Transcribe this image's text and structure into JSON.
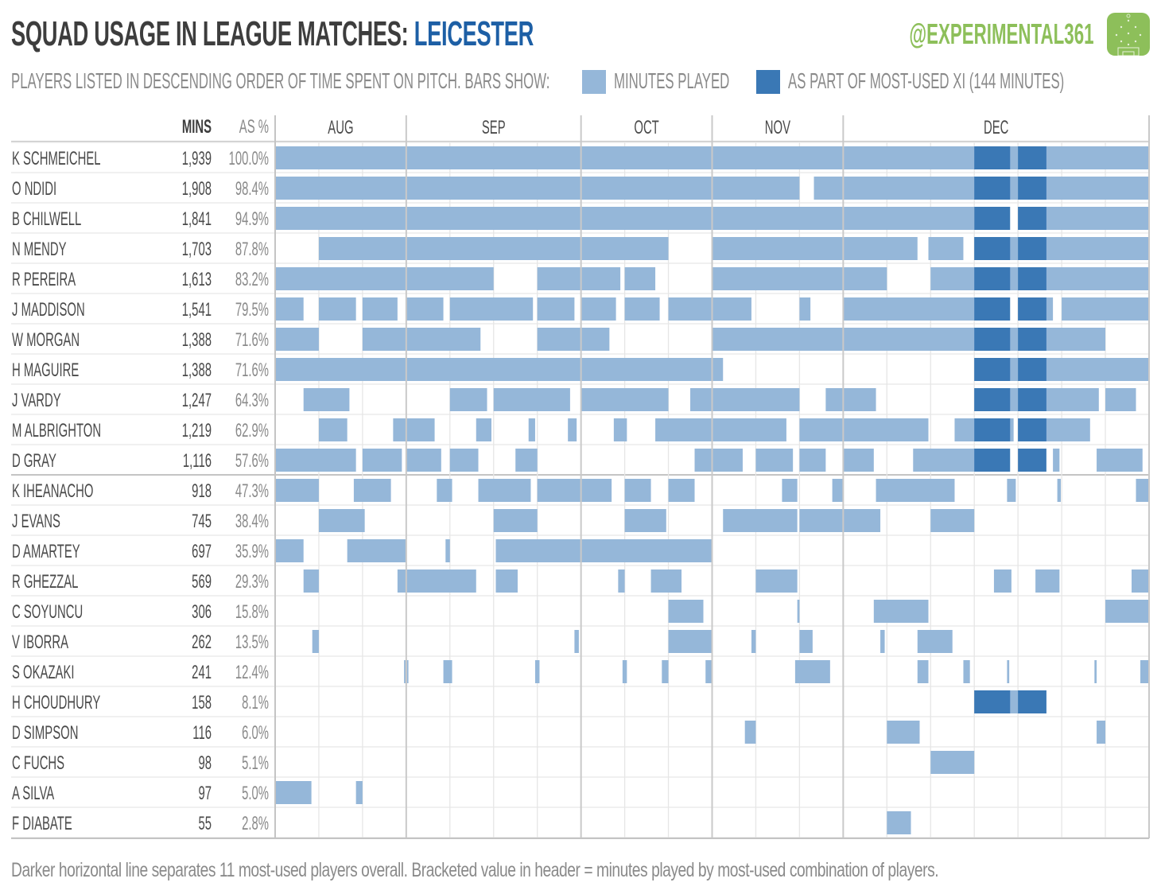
{
  "header": {
    "title_prefix": "SQUAD USAGE IN LEAGUE MATCHES: ",
    "team": "LEICESTER",
    "handle": "@EXPERIMENTAL361",
    "logo_icon": "football-pitch-icon",
    "subtitle": "PLAYERS LISTED IN DESCENDING ORDER OF TIME SPENT ON PITCH.  BARS SHOW:",
    "legend": [
      {
        "label": "MINUTES PLAYED",
        "color": "#95b7d9"
      },
      {
        "label": "AS PART OF MOST-USED XI  (144 MINUTES)",
        "color": "#3a78b5"
      }
    ]
  },
  "footnote": "Darker horizontal line separates 11 most-used players overall.  Bracketed value in header = minutes played by most-used combination of players.",
  "colors": {
    "title": "#3d3d3d",
    "team": "#1d5fa5",
    "brand": "#8dbf5a",
    "minutes": "#95b7d9",
    "most_used_xi": "#3a78b5",
    "grid": "#e3e3e3",
    "month_line": "#c4c4c4"
  },
  "chart_data": {
    "type": "gantt",
    "title": "SQUAD USAGE IN LEAGUE MATCHES: LEICESTER",
    "column_headers": {
      "mins": "MINS",
      "pct": "AS %"
    },
    "total_matches": 20,
    "minutes_per_match": 97,
    "months": [
      {
        "label": "AUG",
        "matches": 3
      },
      {
        "label": "SEP",
        "matches": 4
      },
      {
        "label": "OCT",
        "matches": 3
      },
      {
        "label": "NOV",
        "matches": 3
      },
      {
        "label": "DEC",
        "matches": 7
      }
    ],
    "most_used_xi_minutes": 144,
    "most_used_xi_spans": [
      [
        16.0,
        16.82
      ],
      [
        17.0,
        17.65
      ]
    ],
    "separator_after_rank": 11,
    "x_unit": "match index (0-20), fractional = minute within match",
    "players": [
      {
        "name": "K SCHMEICHEL",
        "mins": "1,939",
        "pct": "100.0%",
        "xi": true,
        "spans": [
          [
            0,
            20
          ]
        ]
      },
      {
        "name": "O NDIDI",
        "mins": "1,908",
        "pct": "98.4%",
        "xi": true,
        "spans": [
          [
            0,
            12.0
          ],
          [
            12.33,
            20
          ]
        ]
      },
      {
        "name": "B CHILWELL",
        "mins": "1,841",
        "pct": "94.9%",
        "xi": true,
        "spans": [
          [
            0,
            16.0
          ],
          [
            17.0,
            20
          ]
        ]
      },
      {
        "name": "N MENDY",
        "mins": "1,703",
        "pct": "87.8%",
        "xi": true,
        "spans": [
          [
            1,
            9.0
          ],
          [
            10,
            14.7
          ],
          [
            14.95,
            15.75
          ],
          [
            16,
            20
          ]
        ]
      },
      {
        "name": "R PEREIRA",
        "mins": "1,613",
        "pct": "83.2%",
        "xi": true,
        "spans": [
          [
            0,
            5.0
          ],
          [
            6,
            7.9
          ],
          [
            8.0,
            8.7
          ],
          [
            10,
            14.0
          ],
          [
            15,
            20
          ]
        ]
      },
      {
        "name": "J MADDISON",
        "mins": "1,541",
        "pct": "79.5%",
        "xi": true,
        "spans": [
          [
            0,
            0.65
          ],
          [
            1,
            1.85
          ],
          [
            2,
            2.8
          ],
          [
            3,
            3.85
          ],
          [
            4,
            5.9
          ],
          [
            6,
            6.85
          ],
          [
            7,
            7.8
          ],
          [
            8,
            8.8
          ],
          [
            9,
            10.9
          ],
          [
            12.0,
            12.25
          ],
          [
            13,
            16.45
          ],
          [
            17,
            17.8
          ],
          [
            18,
            20
          ]
        ]
      },
      {
        "name": "W MORGAN",
        "mins": "1,388",
        "pct": "71.6%",
        "xi": true,
        "spans": [
          [
            0,
            1.0
          ],
          [
            2,
            4.7
          ],
          [
            6,
            7.65
          ],
          [
            10,
            19.0
          ]
        ]
      },
      {
        "name": "H MAGUIRE",
        "mins": "1,388",
        "pct": "71.6%",
        "xi": true,
        "spans": [
          [
            0,
            10.25
          ],
          [
            16,
            20
          ]
        ]
      },
      {
        "name": "J VARDY",
        "mins": "1,247",
        "pct": "64.3%",
        "xi": true,
        "spans": [
          [
            0.65,
            1.7
          ],
          [
            4,
            4.85
          ],
          [
            5,
            6.75
          ],
          [
            7,
            9.0
          ],
          [
            9.5,
            12.0
          ],
          [
            12.6,
            13.75
          ],
          [
            16,
            18.85
          ],
          [
            19,
            19.7
          ]
        ]
      },
      {
        "name": "M ALBRIGHTON",
        "mins": "1,219",
        "pct": "62.9%",
        "xi": true,
        "spans": [
          [
            1,
            1.65
          ],
          [
            2.7,
            3.65
          ],
          [
            4.6,
            4.95
          ],
          [
            5.8,
            5.95
          ],
          [
            6.7,
            6.9
          ],
          [
            7.75,
            8.05
          ],
          [
            8.7,
            11.7
          ],
          [
            12.0,
            14.95
          ],
          [
            15.55,
            16.9
          ],
          [
            17,
            18.65
          ]
        ]
      },
      {
        "name": "D GRAY",
        "mins": "1,116",
        "pct": "57.6%",
        "xi": true,
        "spans": [
          [
            0,
            1.85
          ],
          [
            2,
            2.9
          ],
          [
            3,
            3.8
          ],
          [
            4,
            4.65
          ],
          [
            5.5,
            6.0
          ],
          [
            9.6,
            10.7
          ],
          [
            11,
            11.85
          ],
          [
            12,
            12.6
          ],
          [
            13,
            13.7
          ],
          [
            14.6,
            16.75
          ],
          [
            17.8,
            17.95
          ],
          [
            18.8,
            19.85
          ]
        ]
      },
      {
        "name": "K IHEANACHO",
        "mins": "918",
        "pct": "47.3%",
        "xi": false,
        "spans": [
          [
            0,
            1.0
          ],
          [
            1.8,
            2.65
          ],
          [
            3.7,
            4.05
          ],
          [
            4.65,
            5.85
          ],
          [
            6,
            7.7
          ],
          [
            8,
            8.6
          ],
          [
            9,
            9.6
          ],
          [
            11.6,
            11.95
          ],
          [
            12.75,
            13.0
          ],
          [
            13.75,
            15.55
          ],
          [
            16.75,
            16.95
          ],
          [
            17.9,
            17.98
          ],
          [
            19.7,
            20
          ]
        ]
      },
      {
        "name": "J EVANS",
        "mins": "745",
        "pct": "38.4%",
        "xi": false,
        "spans": [
          [
            1,
            2.05
          ],
          [
            5,
            6.0
          ],
          [
            8,
            8.95
          ],
          [
            10.25,
            11.95
          ],
          [
            12,
            13.85
          ],
          [
            15,
            16.0
          ]
        ]
      },
      {
        "name": "D AMARTEY",
        "mins": "697",
        "pct": "35.9%",
        "xi": false,
        "spans": [
          [
            0,
            0.65
          ],
          [
            1.65,
            3.0
          ],
          [
            3.9,
            4.0
          ],
          [
            5.05,
            10.0
          ]
        ]
      },
      {
        "name": "R GHEZZAL",
        "mins": "569",
        "pct": "29.3%",
        "xi": false,
        "spans": [
          [
            0.65,
            1.0
          ],
          [
            2.8,
            4.6
          ],
          [
            5.05,
            5.55
          ],
          [
            7.85,
            8.0
          ],
          [
            8.6,
            9.3
          ],
          [
            11,
            11.95
          ],
          [
            16.45,
            16.85
          ],
          [
            17.4,
            17.95
          ],
          [
            19.6,
            20
          ]
        ]
      },
      {
        "name": "C SOYUNCU",
        "mins": "306",
        "pct": "15.8%",
        "xi": false,
        "spans": [
          [
            9,
            9.8
          ],
          [
            11.95,
            12.0
          ],
          [
            13.7,
            14.95
          ],
          [
            19,
            20
          ]
        ]
      },
      {
        "name": "V IBORRA",
        "mins": "262",
        "pct": "13.5%",
        "xi": false,
        "spans": [
          [
            0.85,
            1.0
          ],
          [
            6.85,
            6.95
          ],
          [
            9,
            10.0
          ],
          [
            10.9,
            11.0
          ],
          [
            12.0,
            12.3
          ],
          [
            13.85,
            13.95
          ],
          [
            14.7,
            15.5
          ]
        ]
      },
      {
        "name": "S OKAZAKI",
        "mins": "241",
        "pct": "12.4%",
        "xi": false,
        "spans": [
          [
            2.95,
            3.05
          ],
          [
            3.85,
            4.05
          ],
          [
            5.95,
            6.05
          ],
          [
            7.95,
            8.05
          ],
          [
            8.85,
            9.0
          ],
          [
            9.85,
            10.0
          ],
          [
            11.9,
            12.7
          ],
          [
            14.7,
            14.95
          ],
          [
            15.75,
            15.9
          ],
          [
            16.75,
            16.8
          ],
          [
            18.75,
            18.8
          ],
          [
            19.8,
            20
          ]
        ]
      },
      {
        "name": "H CHOUDHURY",
        "mins": "158",
        "pct": "8.1%",
        "xi": false,
        "spans": [
          [
            16,
            17.65
          ]
        ]
      },
      {
        "name": "D SIMPSON",
        "mins": "116",
        "pct": "6.0%",
        "xi": false,
        "spans": [
          [
            10.75,
            11.0
          ],
          [
            14.0,
            14.75
          ],
          [
            18.8,
            19.0
          ]
        ]
      },
      {
        "name": "C FUCHS",
        "mins": "98",
        "pct": "5.1%",
        "xi": false,
        "spans": [
          [
            15.0,
            16.0
          ]
        ]
      },
      {
        "name": "A SILVA",
        "mins": "97",
        "pct": "5.0%",
        "xi": false,
        "spans": [
          [
            0,
            0.83
          ],
          [
            1.85,
            2.0
          ]
        ]
      },
      {
        "name": "F DIABATE",
        "mins": "55",
        "pct": "2.8%",
        "xi": false,
        "spans": [
          [
            14.0,
            14.55
          ]
        ]
      }
    ]
  }
}
